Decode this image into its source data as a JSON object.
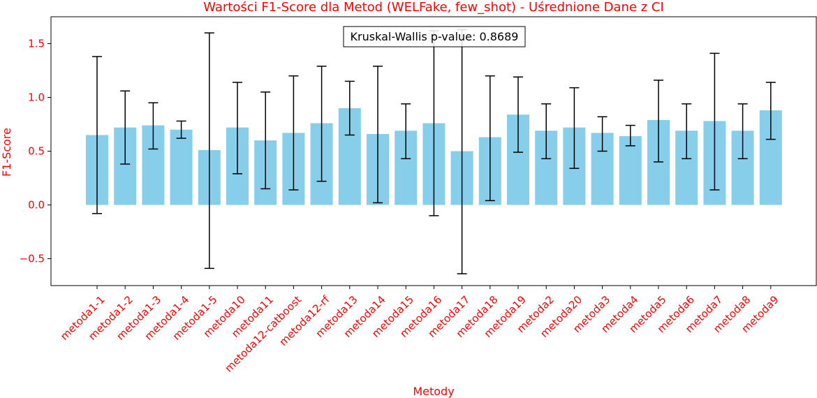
{
  "chart_data": {
    "type": "bar",
    "title": "Wartości F1-Score dla Metod (WELFake, few_shot) - Uśrednione Dane z CI",
    "xlabel": "Metody",
    "ylabel": "F1-Score",
    "ylim": [
      -0.75,
      1.75
    ],
    "yticks": [
      -0.5,
      0.0,
      0.5,
      1.0,
      1.5
    ],
    "ytick_labels": [
      "−0.5",
      "0.0",
      "0.5",
      "1.0",
      "1.5"
    ],
    "grid": false,
    "categories": [
      "metoda1-1",
      "metoda1-2",
      "metoda1-3",
      "metoda1-4",
      "metoda1-5",
      "metoda10",
      "metoda11",
      "metoda12-catboost",
      "metoda12-rf",
      "metoda13",
      "metoda14",
      "metoda15",
      "metoda16",
      "metoda17",
      "metoda18",
      "metoda19",
      "metoda2",
      "metoda20",
      "metoda3",
      "metoda4",
      "metoda5",
      "metoda6",
      "metoda7",
      "metoda8",
      "metoda9"
    ],
    "values": [
      0.65,
      0.72,
      0.74,
      0.7,
      0.51,
      0.72,
      0.6,
      0.67,
      0.76,
      0.9,
      0.66,
      0.69,
      0.76,
      0.5,
      0.63,
      0.84,
      0.69,
      0.72,
      0.67,
      0.64,
      0.79,
      0.69,
      0.78,
      0.69,
      0.88
    ],
    "ci_lower": [
      -0.08,
      0.38,
      0.52,
      0.62,
      -0.59,
      0.29,
      0.15,
      0.14,
      0.22,
      0.65,
      0.02,
      0.43,
      -0.1,
      -0.64,
      0.04,
      0.49,
      0.43,
      0.34,
      0.5,
      0.55,
      0.4,
      0.43,
      0.14,
      0.43,
      0.61
    ],
    "ci_upper": [
      1.38,
      1.06,
      0.95,
      0.78,
      1.6,
      1.14,
      1.05,
      1.2,
      1.29,
      1.15,
      1.29,
      0.94,
      1.62,
      1.63,
      1.2,
      1.19,
      0.94,
      1.09,
      0.82,
      0.74,
      1.16,
      0.94,
      1.41,
      0.94,
      1.14
    ],
    "bar_color": "#87ceeb",
    "text_color": "#ff0000",
    "annotation": "Kruskal-Wallis p-value: 0.8689"
  }
}
